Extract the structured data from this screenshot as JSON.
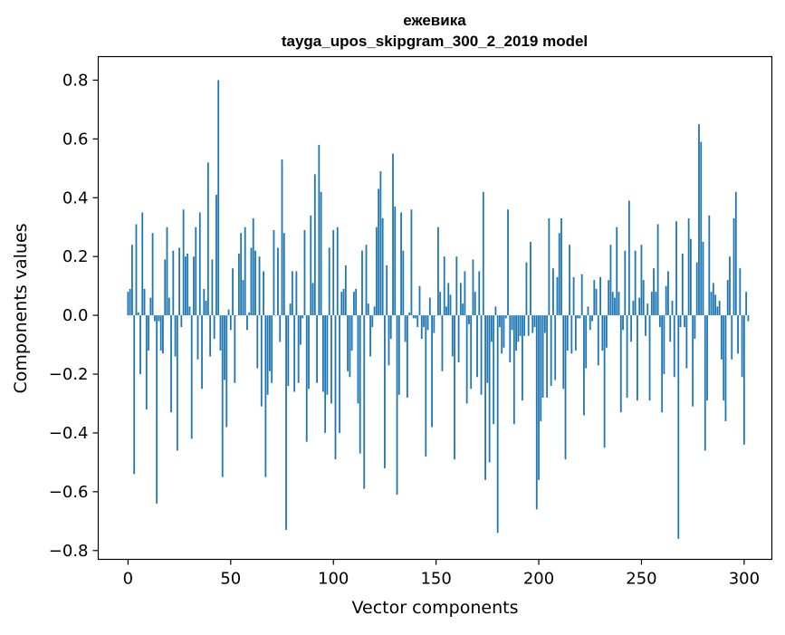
{
  "chart_data": {
    "type": "bar",
    "title": "ежевика",
    "subtitle": "tayga_upos_skipgram_300_2_2019 model",
    "xlabel": "Vector components",
    "ylabel": "Components values",
    "xlim": [
      -14.5,
      313.5
    ],
    "ylim": [
      -0.83,
      0.88
    ],
    "xticks": [
      0,
      50,
      100,
      150,
      200,
      250,
      300
    ],
    "yticks": [
      -0.8,
      -0.6,
      -0.4,
      -0.2,
      0.0,
      0.2,
      0.4,
      0.6,
      0.8
    ],
    "xtick_labels": [
      "0",
      "50",
      "100",
      "150",
      "200",
      "250",
      "300"
    ],
    "ytick_labels": [
      "−0.8",
      "−0.6",
      "−0.4",
      "−0.2",
      "0.0",
      "0.2",
      "0.4",
      "0.6",
      "0.8"
    ],
    "grid": false,
    "bar_color": "#1f77b4",
    "series": [
      {
        "values": [
          0.08,
          0.09,
          0.24,
          -0.54,
          0.31,
          0.01,
          -0.2,
          0.35,
          0.09,
          -0.32,
          -0.12,
          0.06,
          0.28,
          -0.02,
          -0.64,
          -0.02,
          -0.12,
          -0.13,
          0.19,
          0.3,
          0.06,
          -0.33,
          0.22,
          -0.14,
          -0.46,
          0.23,
          -0.04,
          0.36,
          0.2,
          0.21,
          0.03,
          -0.42,
          0.2,
          0.3,
          -0.15,
          0.35,
          -0.25,
          0.09,
          0.05,
          0.52,
          -0.14,
          0.19,
          -0.08,
          0.41,
          0.8,
          -0.12,
          -0.55,
          -0.22,
          -0.38,
          0.02,
          -0.05,
          0.16,
          -0.23,
          0.0,
          0.21,
          0.28,
          0.12,
          0.3,
          -0.05,
          0.01,
          0.23,
          0.33,
          0.22,
          -0.18,
          0.2,
          -0.31,
          0.15,
          -0.55,
          -0.27,
          -0.19,
          -0.23,
          0.29,
          0.0,
          0.23,
          -0.09,
          0.53,
          0.28,
          -0.73,
          -0.24,
          0.04,
          0.15,
          -0.26,
          0.15,
          -0.23,
          -0.1,
          -0.01,
          0.29,
          -0.43,
          -0.25,
          0.34,
          0.11,
          0.48,
          -0.23,
          0.58,
          0.42,
          -0.26,
          -0.4,
          -0.27,
          0.23,
          -0.3,
          0.29,
          -0.49,
          0.3,
          -0.4,
          0.08,
          0.09,
          0.17,
          -0.19,
          -0.21,
          -0.12,
          0.08,
          0.09,
          -0.3,
          -0.47,
          0.22,
          -0.59,
          0.24,
          0.04,
          -0.14,
          -0.04,
          0.03,
          0.3,
          0.43,
          0.49,
          0.33,
          -0.52,
          0.17,
          -0.17,
          -0.08,
          0.55,
          0.37,
          -0.61,
          -0.27,
          0.35,
          0.22,
          -0.09,
          -0.28,
          0.01,
          0.36,
          -0.01,
          -0.01,
          -0.04,
          0.1,
          -0.08,
          -0.04,
          -0.48,
          -0.05,
          0.06,
          -0.38,
          -0.06,
          0.0,
          0.3,
          0.08,
          -0.19,
          0.2,
          0.03,
          0.11,
          0.07,
          -0.14,
          -0.49,
          0.2,
          -0.16,
          0.11,
          0.04,
          0.15,
          -0.3,
          -0.03,
          -0.25,
          0.19,
          0.08,
          -0.21,
          0.15,
          -0.27,
          0.42,
          -0.56,
          -0.23,
          -0.5,
          -0.09,
          -0.37,
          0.03,
          -0.74,
          -0.04,
          -0.13,
          -0.11,
          -0.01,
          0.36,
          -0.16,
          -0.05,
          -0.37,
          -0.12,
          -0.09,
          -0.07,
          -0.29,
          -0.07,
          0.18,
          -0.07,
          0.25,
          -0.06,
          -0.04,
          -0.66,
          -0.56,
          -0.36,
          -0.28,
          -0.06,
          -0.28,
          0.33,
          -0.24,
          0.16,
          -0.22,
          0.13,
          0.28,
          0.33,
          -0.25,
          -0.49,
          -0.12,
          0.24,
          -0.13,
          0.13,
          -0.12,
          -0.01,
          -0.01,
          0.14,
          -0.34,
          -0.18,
          0.03,
          -0.05,
          -0.02,
          0.12,
          0.09,
          -0.17,
          0.13,
          -0.12,
          -0.45,
          -0.11,
          0.12,
          0.24,
          0.08,
          0.06,
          0.3,
          0.08,
          -0.33,
          -0.05,
          0.22,
          -0.28,
          0.39,
          -0.09,
          0.05,
          0.22,
          -0.29,
          0.06,
          0.24,
          0.12,
          -0.07,
          0.04,
          -0.29,
          0.08,
          0.16,
          0.08,
          0.31,
          -0.04,
          -0.33,
          -0.2,
          0.1,
          0.15,
          -0.09,
          0.05,
          -0.21,
          0.32,
          -0.76,
          -0.04,
          0.21,
          -0.04,
          -0.18,
          0.33,
          0.26,
          -0.31,
          -0.08,
          0.18,
          0.65,
          0.59,
          0.25,
          -0.46,
          -0.29,
          0.34,
          0.08,
          0.11,
          0.07,
          0.03,
          0.05,
          -0.15,
          -0.29,
          -0.36,
          0.12,
          0.2,
          -0.15,
          0.33,
          0.42,
          -0.13,
          0.16,
          -0.21,
          -0.44,
          0.08,
          -0.02
        ]
      }
    ]
  }
}
